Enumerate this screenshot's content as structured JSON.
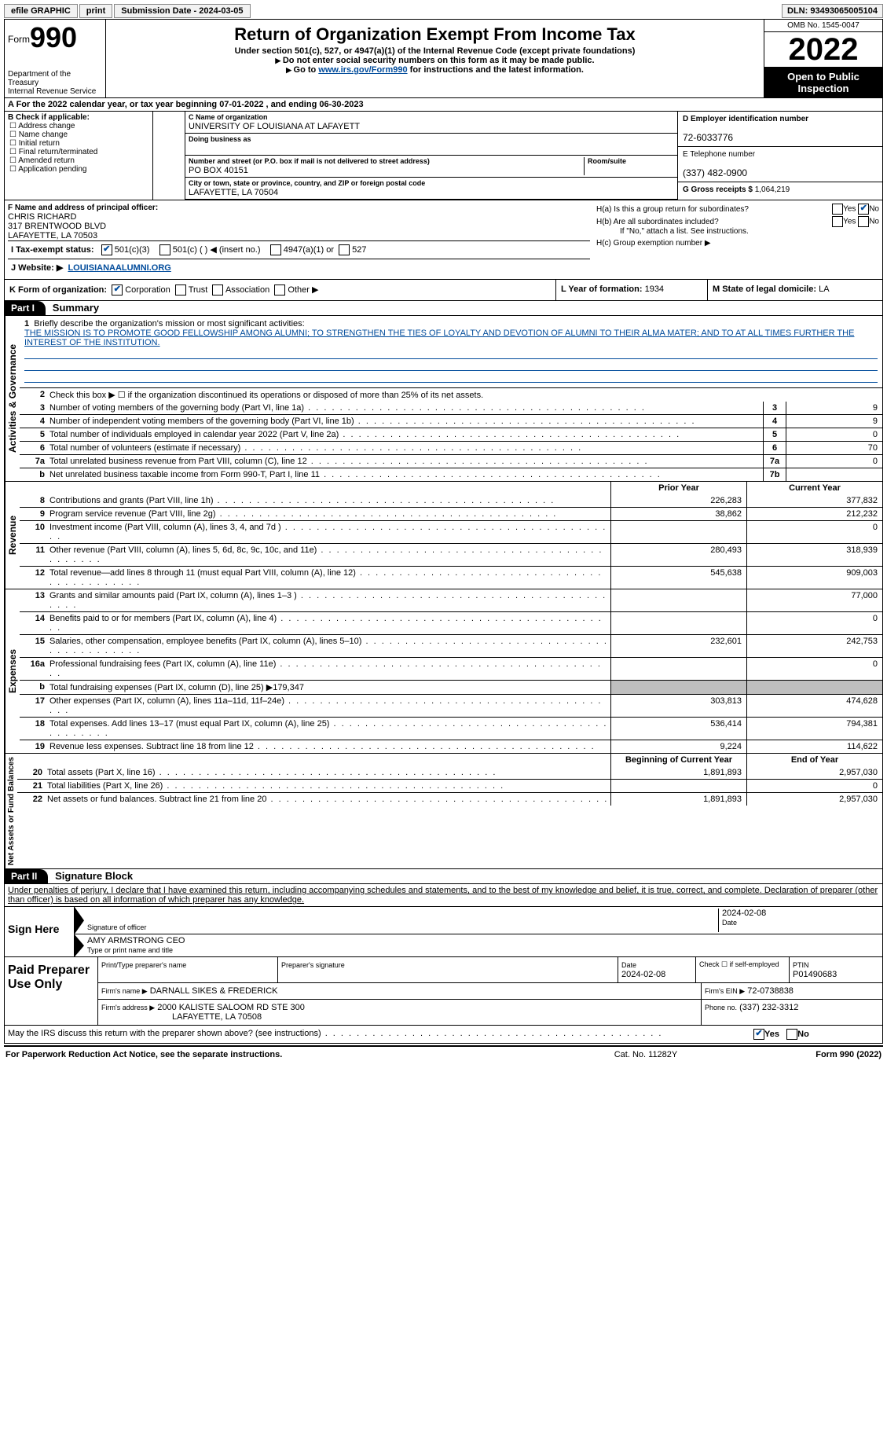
{
  "topbar": {
    "efile": "efile GRAPHIC",
    "print": "print",
    "sub_label": "Submission Date - 2024-03-05",
    "dln": "DLN: 93493065005104"
  },
  "header": {
    "form_word": "Form",
    "form_no": "990",
    "title": "Return of Organization Exempt From Income Tax",
    "subtitle": "Under section 501(c), 527, or 4947(a)(1) of the Internal Revenue Code (except private foundations)",
    "note1": "Do not enter social security numbers on this form as it may be made public.",
    "note2_pre": "Go to ",
    "note2_link": "www.irs.gov/Form990",
    "note2_post": " for instructions and the latest information.",
    "dept": "Department of the Treasury",
    "irs": "Internal Revenue Service",
    "omb": "OMB No. 1545-0047",
    "year": "2022",
    "open": "Open to Public Inspection"
  },
  "lineA": "A For the 2022 calendar year, or tax year beginning 07-01-2022   , and ending 06-30-2023",
  "boxB": {
    "title": "B Check if applicable:",
    "items": [
      "Address change",
      "Name change",
      "Initial return",
      "Final return/terminated",
      "Amended return",
      "Application pending"
    ]
  },
  "boxC": {
    "name_lab": "C Name of organization",
    "name": "UNIVERSITY OF LOUISIANA AT LAFAYETT",
    "dba_lab": "Doing business as",
    "dba": "",
    "addr_lab": "Number and street (or P.O. box if mail is not delivered to street address)",
    "room_lab": "Room/suite",
    "addr": "PO BOX 40151",
    "city_lab": "City or town, state or province, country, and ZIP or foreign postal code",
    "city": "LAFAYETTE, LA  70504"
  },
  "boxD": {
    "lab": "D Employer identification number",
    "val": "72-6033776"
  },
  "boxE": {
    "lab": "E Telephone number",
    "val": "(337) 482-0900"
  },
  "boxG": {
    "lab": "G Gross receipts $",
    "val": "1,064,219"
  },
  "boxF": {
    "lab": "F Name and address of principal officer:",
    "name": "CHRIS RICHARD",
    "addr1": "317 BRENTWOOD BLVD",
    "addr2": "LAFAYETTE, LA  70503"
  },
  "boxH": {
    "ha": "H(a)  Is this a group return for subordinates?",
    "ha_yes": "Yes",
    "ha_no": "No",
    "hb": "H(b)  Are all subordinates included?",
    "hb_note": "If \"No,\" attach a list. See instructions.",
    "hc": "H(c)  Group exemption number ▶"
  },
  "lineI": {
    "lab": "I   Tax-exempt status:",
    "o1": "501(c)(3)",
    "o2": "501(c) (  ) ◀ (insert no.)",
    "o3": "4947(a)(1) or",
    "o4": "527"
  },
  "lineJ": {
    "lab": "J   Website: ▶",
    "val": "LOUISIANAALUMNI.ORG"
  },
  "lineK": {
    "lab": "K Form of organization:",
    "o1": "Corporation",
    "o2": "Trust",
    "o3": "Association",
    "o4": "Other ▶"
  },
  "lineL": {
    "lab": "L Year of formation:",
    "val": "1934"
  },
  "lineM": {
    "lab": "M State of legal domicile:",
    "val": "LA"
  },
  "part1": {
    "tag": "Part I",
    "title": "Summary"
  },
  "summary": {
    "tabs": [
      "Activities & Governance",
      "Revenue",
      "Expenses",
      "Net Assets or Fund Balances"
    ],
    "l1_lab": "Briefly describe the organization's mission or most significant activities:",
    "l1_text": "THE MISSION IS TO PROMOTE GOOD FELLOWSHIP AMONG ALUMNI; TO STRENGTHEN THE TIES OF LOYALTY AND DEVOTION OF ALUMNI TO THEIR ALMA MATER; AND TO AT ALL TIMES FURTHER THE INTEREST OF THE INSTITUTION.",
    "l2": "Check this box ▶ ☐ if the organization discontinued its operations or disposed of more than 25% of its net assets.",
    "lines_gov": [
      {
        "n": "3",
        "t": "Number of voting members of the governing body (Part VI, line 1a)",
        "box": "3",
        "v": "9"
      },
      {
        "n": "4",
        "t": "Number of independent voting members of the governing body (Part VI, line 1b)",
        "box": "4",
        "v": "9"
      },
      {
        "n": "5",
        "t": "Total number of individuals employed in calendar year 2022 (Part V, line 2a)",
        "box": "5",
        "v": "0"
      },
      {
        "n": "6",
        "t": "Total number of volunteers (estimate if necessary)",
        "box": "6",
        "v": "70"
      },
      {
        "n": "7a",
        "t": "Total unrelated business revenue from Part VIII, column (C), line 12",
        "box": "7a",
        "v": "0"
      },
      {
        "n": "b",
        "t": "Net unrelated business taxable income from Form 990-T, Part I, line 11",
        "box": "7b",
        "v": ""
      }
    ],
    "col_prior": "Prior Year",
    "col_curr": "Current Year",
    "rev": [
      {
        "n": "8",
        "t": "Contributions and grants (Part VIII, line 1h)",
        "p": "226,283",
        "c": "377,832"
      },
      {
        "n": "9",
        "t": "Program service revenue (Part VIII, line 2g)",
        "p": "38,862",
        "c": "212,232"
      },
      {
        "n": "10",
        "t": "Investment income (Part VIII, column (A), lines 3, 4, and 7d )",
        "p": "",
        "c": "0"
      },
      {
        "n": "11",
        "t": "Other revenue (Part VIII, column (A), lines 5, 6d, 8c, 9c, 10c, and 11e)",
        "p": "280,493",
        "c": "318,939"
      },
      {
        "n": "12",
        "t": "Total revenue—add lines 8 through 11 (must equal Part VIII, column (A), line 12)",
        "p": "545,638",
        "c": "909,003"
      }
    ],
    "exp": [
      {
        "n": "13",
        "t": "Grants and similar amounts paid (Part IX, column (A), lines 1–3 )",
        "p": "",
        "c": "77,000"
      },
      {
        "n": "14",
        "t": "Benefits paid to or for members (Part IX, column (A), line 4)",
        "p": "",
        "c": "0"
      },
      {
        "n": "15",
        "t": "Salaries, other compensation, employee benefits (Part IX, column (A), lines 5–10)",
        "p": "232,601",
        "c": "242,753"
      },
      {
        "n": "16a",
        "t": "Professional fundraising fees (Part IX, column (A), line 11e)",
        "p": "",
        "c": "0"
      },
      {
        "n": "b",
        "t": "Total fundraising expenses (Part IX, column (D), line 25) ▶179,347",
        "p": "SHADE",
        "c": "SHADE"
      },
      {
        "n": "17",
        "t": "Other expenses (Part IX, column (A), lines 11a–11d, 11f–24e)",
        "p": "303,813",
        "c": "474,628"
      },
      {
        "n": "18",
        "t": "Total expenses. Add lines 13–17 (must equal Part IX, column (A), line 25)",
        "p": "536,414",
        "c": "794,381"
      },
      {
        "n": "19",
        "t": "Revenue less expenses. Subtract line 18 from line 12",
        "p": "9,224",
        "c": "114,622"
      }
    ],
    "col_begin": "Beginning of Current Year",
    "col_end": "End of Year",
    "net": [
      {
        "n": "20",
        "t": "Total assets (Part X, line 16)",
        "p": "1,891,893",
        "c": "2,957,030"
      },
      {
        "n": "21",
        "t": "Total liabilities (Part X, line 26)",
        "p": "",
        "c": "0"
      },
      {
        "n": "22",
        "t": "Net assets or fund balances. Subtract line 21 from line 20",
        "p": "1,891,893",
        "c": "2,957,030"
      }
    ]
  },
  "part2": {
    "tag": "Part II",
    "title": "Signature Block"
  },
  "sig": {
    "decl": "Under penalties of perjury, I declare that I have examined this return, including accompanying schedules and statements, and to the best of my knowledge and belief, it is true, correct, and complete. Declaration of preparer (other than officer) is based on all information of which preparer has any knowledge.",
    "sign_here": "Sign Here",
    "sig_officer": "Signature of officer",
    "date_lab": "Date",
    "date": "2024-02-08",
    "name": "AMY ARMSTRONG CEO",
    "name_lab": "Type or print name and title"
  },
  "prep": {
    "title": "Paid Preparer Use Only",
    "r1": {
      "c1": "Print/Type preparer's name",
      "c2": "Preparer's signature",
      "c3_lab": "Date",
      "c3": "2024-02-08",
      "c4": "Check ☐ if self-employed",
      "c5_lab": "PTIN",
      "c5": "P01490683"
    },
    "r2": {
      "c1": "Firm's name    ▶",
      "c1v": "DARNALL SIKES & FREDERICK",
      "c2": "Firm's EIN ▶",
      "c2v": "72-0738838"
    },
    "r3": {
      "c1": "Firm's address ▶",
      "c1v": "2000 KALISTE SALOOM RD STE 300",
      "c1v2": "LAFAYETTE, LA  70508",
      "c2": "Phone no.",
      "c2v": "(337) 232-3312"
    }
  },
  "may_irs": {
    "q": "May the IRS discuss this return with the preparer shown above? (see instructions)",
    "yes": "Yes",
    "no": "No"
  },
  "footer": {
    "left": "For Paperwork Reduction Act Notice, see the separate instructions.",
    "mid": "Cat. No. 11282Y",
    "right": "Form 990 (2022)"
  },
  "colors": {
    "link": "#004b9b",
    "check": "#004b9b"
  }
}
